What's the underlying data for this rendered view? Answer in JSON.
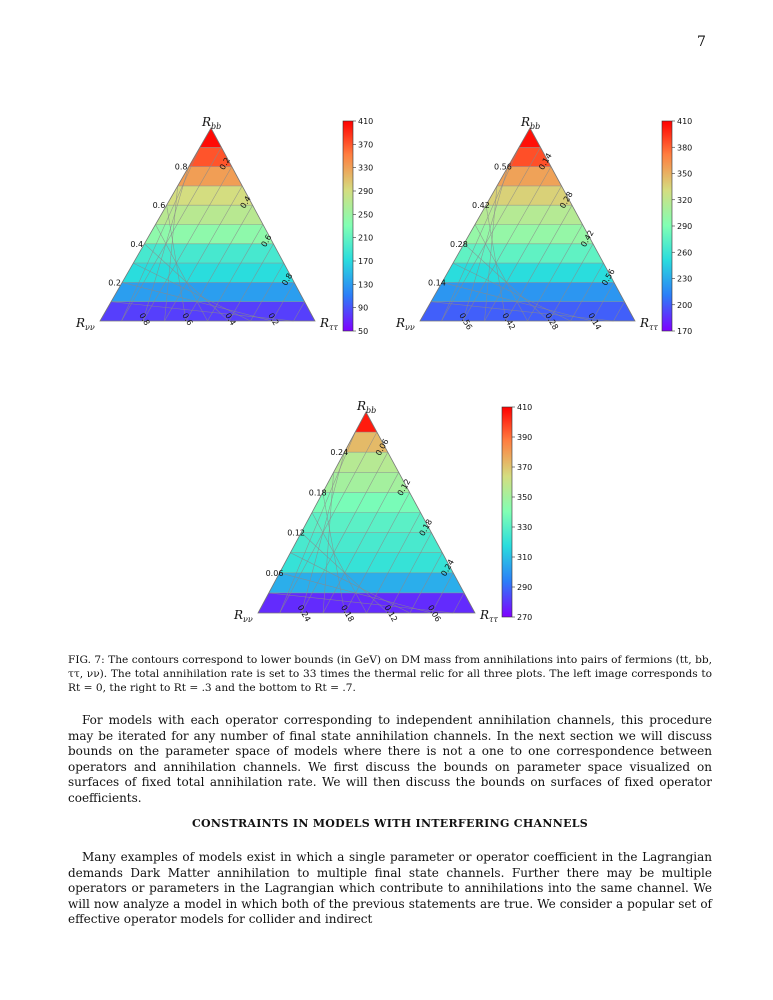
{
  "page_number": "7",
  "figure": {
    "caption": "FIG. 7: The contours correspond to lower bounds (in GeV) on DM mass from annihilations into pairs of fermions (tt, bb, ττ, νν). The total annihilation rate is set to 33 times the thermal relic for all three plots. The left image corresponds to Rt = 0, the right to Rt = .3 and the bottom to Rt = .7.",
    "axis_labels": {
      "top_main": "R",
      "top_sub": "bb",
      "left_main": "R",
      "left_sub": "νν",
      "right_main": "R",
      "right_sub": "ττ"
    },
    "colormap": [
      "#7f00ff",
      "#2c7ef8",
      "#2adddd",
      "#80ffb4",
      "#d4dd80",
      "#ff7e40",
      "#ff0000"
    ]
  },
  "chart_data": [
    {
      "type": "heatmap",
      "panel": "left",
      "title": "",
      "left_edge_ticks": [
        "0.8",
        "0.6",
        "0.4",
        "0.2"
      ],
      "right_edge_ticks": [
        "0.2",
        "0.4",
        "0.6",
        "0.8"
      ],
      "bottom_edge_ticks": [
        "0.8",
        "0.6",
        "0.4",
        "0.2"
      ],
      "colorbar_ticks": [
        "410",
        "370",
        "330",
        "290",
        "250",
        "210",
        "170",
        "130",
        "90",
        "50"
      ],
      "colorbar_range": [
        50,
        410
      ],
      "levels_by_Rbb": [
        {
          "Rbb": 0.05,
          "value": 80
        },
        {
          "Rbb": 0.15,
          "value": 130
        },
        {
          "Rbb": 0.25,
          "value": 170
        },
        {
          "Rbb": 0.35,
          "value": 190
        },
        {
          "Rbb": 0.45,
          "value": 240
        },
        {
          "Rbb": 0.55,
          "value": 270
        },
        {
          "Rbb": 0.65,
          "value": 290
        },
        {
          "Rbb": 0.75,
          "value": 330
        },
        {
          "Rbb": 0.85,
          "value": 370
        },
        {
          "Rbb": 0.95,
          "value": 405
        }
      ]
    },
    {
      "type": "heatmap",
      "panel": "right",
      "title": "",
      "left_edge_ticks": [
        "0.56",
        "0.42",
        "0.28",
        "0.14"
      ],
      "right_edge_ticks": [
        "0.14",
        "0.28",
        "0.42",
        "0.56"
      ],
      "bottom_edge_ticks": [
        "0.56",
        "0.42",
        "0.28",
        "0.14"
      ],
      "colorbar_ticks": [
        "410",
        "380",
        "350",
        "320",
        "290",
        "260",
        "230",
        "200",
        "170"
      ],
      "colorbar_range": [
        170,
        410
      ],
      "levels_by_Rbb": [
        {
          "Rbb": 0.035,
          "value": 200
        },
        {
          "Rbb": 0.105,
          "value": 220
        },
        {
          "Rbb": 0.175,
          "value": 250
        },
        {
          "Rbb": 0.245,
          "value": 275
        },
        {
          "Rbb": 0.315,
          "value": 300
        },
        {
          "Rbb": 0.385,
          "value": 315
        },
        {
          "Rbb": 0.455,
          "value": 335
        },
        {
          "Rbb": 0.525,
          "value": 355
        },
        {
          "Rbb": 0.595,
          "value": 385
        },
        {
          "Rbb": 0.665,
          "value": 405
        }
      ]
    },
    {
      "type": "heatmap",
      "panel": "bottom",
      "title": "",
      "left_edge_ticks": [
        "0.24",
        "0.18",
        "0.12",
        "0.06"
      ],
      "right_edge_ticks": [
        "0.06",
        "0.12",
        "0.18",
        "0.24"
      ],
      "bottom_edge_ticks": [
        "0.24",
        "0.18",
        "0.12",
        "0.06"
      ],
      "colorbar_ticks": [
        "410",
        "390",
        "370",
        "350",
        "330",
        "310",
        "290",
        "270"
      ],
      "colorbar_range": [
        270,
        410
      ],
      "levels_by_Rbb": [
        {
          "Rbb": 0.015,
          "value": 278
        },
        {
          "Rbb": 0.045,
          "value": 305
        },
        {
          "Rbb": 0.075,
          "value": 320
        },
        {
          "Rbb": 0.105,
          "value": 325
        },
        {
          "Rbb": 0.135,
          "value": 330
        },
        {
          "Rbb": 0.165,
          "value": 338
        },
        {
          "Rbb": 0.195,
          "value": 350
        },
        {
          "Rbb": 0.225,
          "value": 355
        },
        {
          "Rbb": 0.255,
          "value": 372
        },
        {
          "Rbb": 0.285,
          "value": 405
        }
      ]
    }
  ],
  "paragraphs": [
    "For models with each operator corresponding to independent annihilation channels, this procedure may be iterated for any number of final state annihilation channels. In the next section we will discuss bounds on the parameter space of models where there is not a one to one correspondence between operators and annihilation channels. We first discuss the bounds on parameter space visualized on surfaces of fixed total annihilation rate. We will then discuss the bounds on surfaces of fixed operator coefficients."
  ],
  "section_heading": "CONSTRAINTS IN MODELS WITH INTERFERING CHANNELS",
  "paragraphs2": [
    "Many examples of models exist in which a single parameter or operator coefficient in the Lagrangian demands Dark Matter annihilation to multiple final state channels. Further there may be multiple operators or parameters in the Lagrangian which contribute to annihilations into the same channel. We will now analyze a model in which both of the previous statements are true. We consider a popular set of effective operator models for collider and indirect"
  ]
}
